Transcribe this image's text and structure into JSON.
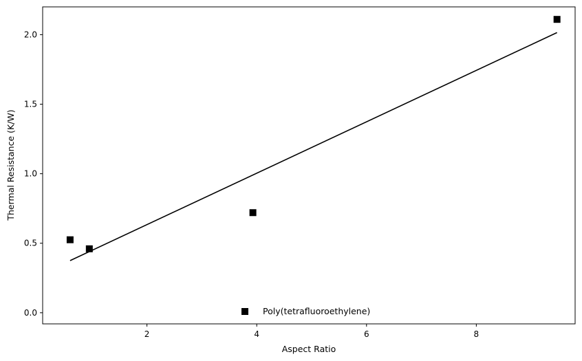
{
  "chart_data": {
    "type": "scatter",
    "xlabel": "Aspect Ratio",
    "ylabel": "Thermal Resistance (K/W)",
    "xlim": [
      0.1,
      9.8
    ],
    "ylim": [
      -0.08,
      2.2
    ],
    "xticks": [
      2,
      4,
      6,
      8
    ],
    "xtick_labels": [
      "2",
      "4",
      "6",
      "8"
    ],
    "yticks": [
      0.0,
      0.5,
      1.0,
      1.5,
      2.0
    ],
    "ytick_labels": [
      "0.0",
      "0.5",
      "1.0",
      "1.5",
      "2.0"
    ],
    "grid": false,
    "legend_position": "lower-center",
    "series": [
      {
        "name": "Poly(tetrafluoroethylene)",
        "marker": "square",
        "color": "#000000",
        "x": [
          0.6,
          0.95,
          3.93,
          9.47
        ],
        "y": [
          0.525,
          0.46,
          0.72,
          2.11
        ]
      }
    ],
    "fit_line": {
      "color": "#000000",
      "x": [
        0.6,
        9.47
      ],
      "y": [
        0.375,
        2.015
      ]
    }
  }
}
